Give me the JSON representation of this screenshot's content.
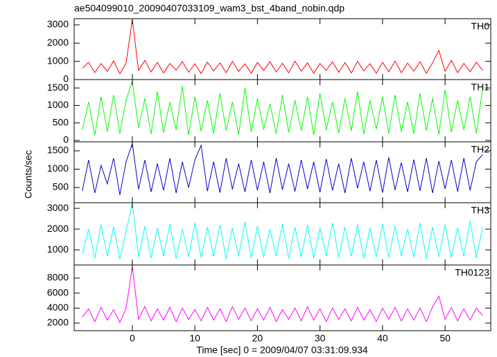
{
  "chart_data": {
    "type": "line",
    "title": "ae504099010_20090407033109_wam3_bst_4band_nobin.qdp",
    "xlabel": "Time [sec] 0 = 2009/04/07 03:31:09.934",
    "ylabel": "Counts/sec",
    "x": [
      -8,
      -7,
      -6,
      -5,
      -4,
      -3,
      -2,
      -1,
      0,
      1,
      2,
      3,
      4,
      5,
      6,
      7,
      8,
      9,
      10,
      11,
      12,
      13,
      14,
      15,
      16,
      17,
      18,
      19,
      20,
      21,
      22,
      23,
      24,
      25,
      26,
      27,
      28,
      29,
      30,
      31,
      32,
      33,
      34,
      35,
      36,
      37,
      38,
      39,
      40,
      41,
      42,
      43,
      44,
      45,
      46,
      47,
      48,
      49,
      50,
      51,
      52,
      53,
      54,
      55,
      56
    ],
    "xlim": [
      -9.3,
      57.3
    ],
    "xticks": [
      0,
      10,
      20,
      30,
      40,
      50
    ],
    "panels": [
      {
        "name": "TH0",
        "color": "#ff0000",
        "ylim": [
          0,
          3340
        ],
        "yticks": [
          0,
          1000,
          2000,
          3000
        ],
        "values": [
          620,
          950,
          380,
          880,
          450,
          1020,
          330,
          900,
          3300,
          500,
          1050,
          420,
          940,
          360,
          880,
          520,
          990,
          400,
          870,
          330,
          960,
          480,
          910,
          380,
          1000,
          450,
          860,
          350,
          940,
          500,
          980,
          420,
          890,
          370,
          1010,
          460,
          920,
          340,
          880,
          510,
          970,
          400,
          930,
          360,
          1000,
          480,
          870,
          350,
          950,
          420,
          1010,
          380,
          900,
          460,
          980,
          340,
          920,
          1600,
          450,
          1050,
          380,
          890,
          430,
          960,
          500
        ]
      },
      {
        "name": "TH1",
        "color": "#00ff00",
        "ylim": [
          -40,
          1740
        ],
        "yticks": [
          0,
          500,
          1000,
          1500
        ],
        "values": [
          300,
          1100,
          150,
          1250,
          250,
          1300,
          200,
          1150,
          1700,
          350,
          1200,
          180,
          1400,
          220,
          1100,
          300,
          1550,
          150,
          1250,
          260,
          1150,
          200,
          1350,
          280,
          1100,
          170,
          1500,
          240,
          1200,
          310,
          1050,
          190,
          1300,
          230,
          1150,
          280,
          1250,
          160,
          1350,
          300,
          1100,
          210,
          1200,
          270,
          1400,
          180,
          1150,
          320,
          1250,
          200,
          1300,
          250,
          1100,
          190,
          1350,
          280,
          1200,
          170,
          1450,
          230,
          1150,
          300,
          1250,
          200,
          1500
        ]
      },
      {
        "name": "TH2",
        "color": "#0000cc",
        "ylim": [
          85,
          1745
        ],
        "yticks": [
          500,
          1000,
          1500
        ],
        "values": [
          400,
          1250,
          350,
          1100,
          600,
          1300,
          300,
          1200,
          1700,
          450,
          1250,
          380,
          1150,
          420,
          1300,
          350,
          1200,
          500,
          1250,
          1650,
          400,
          1200,
          360,
          1300,
          450,
          1150,
          380,
          1250,
          420,
          1200,
          350,
          1300,
          440,
          1150,
          390,
          1250,
          460,
          1200,
          370,
          1280,
          420,
          1150,
          350,
          1300,
          480,
          1200,
          400,
          1250,
          360,
          1320,
          430,
          1180,
          380,
          1260,
          410,
          1300,
          350,
          1220,
          460,
          1250,
          390,
          1300,
          420,
          1200,
          1400
        ]
      },
      {
        "name": "TH3",
        "color": "#00ffff",
        "ylim": [
          270,
          3270
        ],
        "yticks": [
          1000,
          2000,
          3000
        ],
        "values": [
          800,
          2000,
          600,
          2200,
          700,
          2100,
          550,
          1900,
          3250,
          650,
          2150,
          600,
          2050,
          700,
          2250,
          580,
          2000,
          650,
          2300,
          620,
          2100,
          700,
          2200,
          560,
          2050,
          680,
          2350,
          600,
          2150,
          640,
          2000,
          700,
          2250,
          580,
          2100,
          660,
          2200,
          600,
          2050,
          700,
          2300,
          620,
          2100,
          680,
          2200,
          590,
          2050,
          650,
          2250,
          610,
          2150,
          700,
          2000,
          640,
          2300,
          580,
          2100,
          660,
          2200,
          620,
          2050,
          700,
          2400,
          600,
          2100
        ]
      },
      {
        "name": "TH0123",
        "color": "#ff00ff",
        "ylim": [
          985,
          9750
        ],
        "yticks": [
          2000,
          4000,
          6000,
          8000
        ],
        "values": [
          2800,
          3900,
          2200,
          4100,
          2400,
          3800,
          2100,
          4000,
          9500,
          2500,
          4200,
          2300,
          3900,
          2400,
          4100,
          2200,
          4000,
          2500,
          3800,
          2300,
          4100,
          2400,
          3900,
          2200,
          4200,
          2500,
          4000,
          2300,
          3900,
          2400,
          4100,
          2200,
          3800,
          2500,
          4000,
          2300,
          4200,
          2400,
          3900,
          2200,
          4000,
          2500,
          3900,
          2300,
          4100,
          2400,
          3800,
          2200,
          4000,
          2500,
          4100,
          2300,
          3900,
          2400,
          4000,
          2200,
          4200,
          5600,
          2500,
          4100,
          2300,
          3900,
          2400,
          4000,
          3000
        ]
      }
    ]
  }
}
